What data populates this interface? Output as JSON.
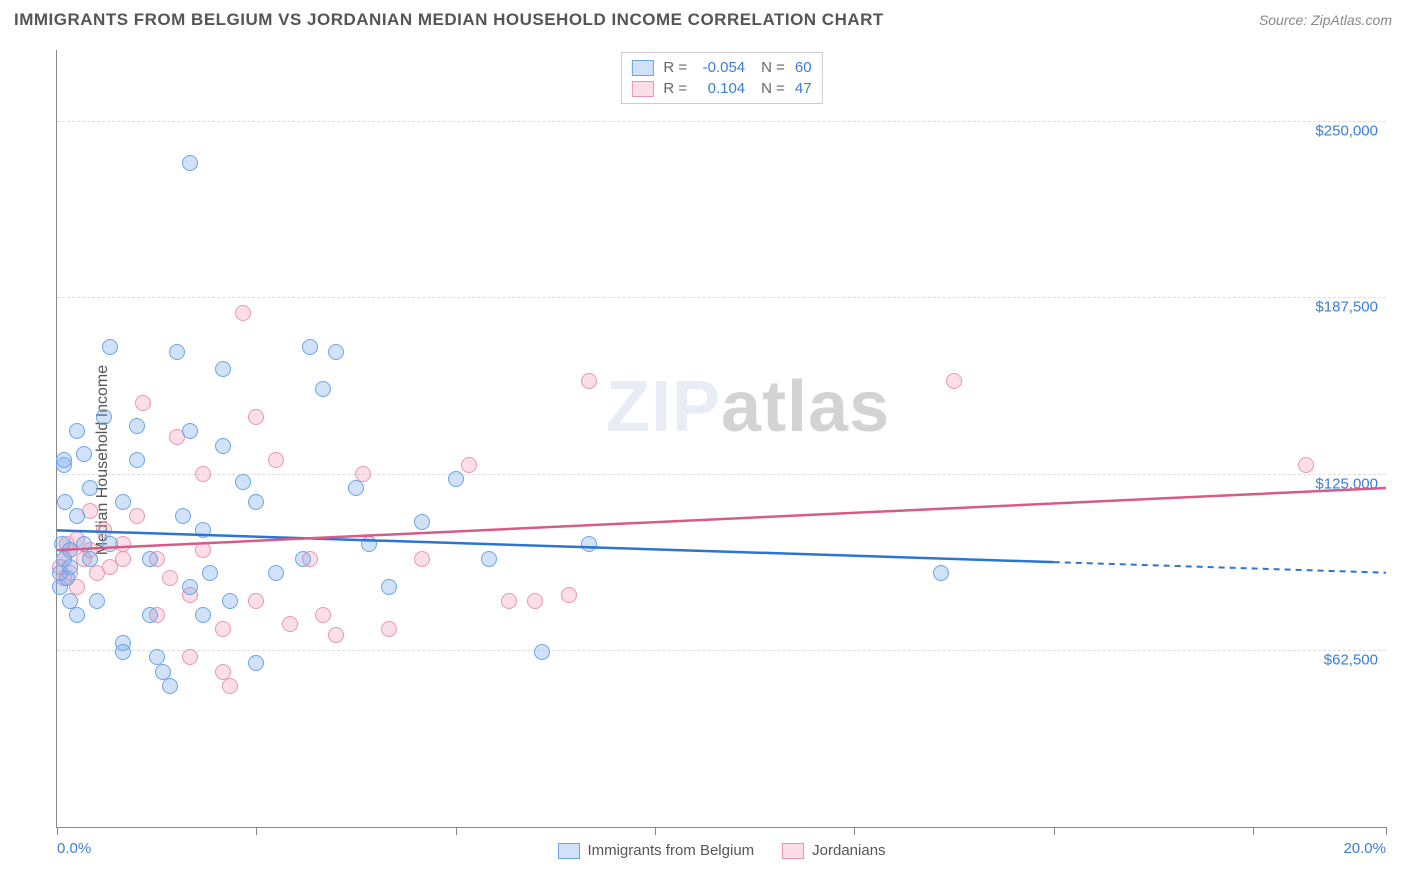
{
  "header": {
    "title": "IMMIGRANTS FROM BELGIUM VS JORDANIAN MEDIAN HOUSEHOLD INCOME CORRELATION CHART",
    "source_prefix": "Source: ",
    "source_name": "ZipAtlas.com"
  },
  "chart": {
    "type": "scatter",
    "ylabel": "Median Household Income",
    "xlim": [
      0.0,
      20.0
    ],
    "ylim": [
      0,
      275000
    ],
    "x_ticks": [
      0.0,
      3.0,
      6.0,
      9.0,
      12.0,
      15.0,
      18.0,
      20.0
    ],
    "x_tick_labels": {
      "0": "0.0%",
      "20": "20.0%"
    },
    "y_gridlines": [
      62500,
      125000,
      187500,
      250000
    ],
    "y_labels": [
      "$62,500",
      "$125,000",
      "$187,500",
      "$250,000"
    ],
    "background_color": "#ffffff",
    "grid_color": "#dddddd",
    "axis_color": "#888888",
    "series": [
      {
        "name": "Immigrants from Belgium",
        "color_fill": "rgba(120,170,235,0.35)",
        "color_stroke": "#6aa6e6",
        "line_color": "#2b74d4",
        "marker_radius": 8,
        "r": "-0.054",
        "n": "60",
        "trend": {
          "y_at_xmin": 105000,
          "y_at_xmax": 90000,
          "x_solid_end": 15.0
        },
        "points": [
          [
            0.05,
            90000
          ],
          [
            0.05,
            85000
          ],
          [
            0.08,
            100000
          ],
          [
            0.1,
            95000
          ],
          [
            0.1,
            128000
          ],
          [
            0.1,
            130000
          ],
          [
            0.12,
            115000
          ],
          [
            0.15,
            88000
          ],
          [
            0.2,
            80000
          ],
          [
            0.2,
            92000
          ],
          [
            0.2,
            98000
          ],
          [
            0.3,
            140000
          ],
          [
            0.3,
            75000
          ],
          [
            0.3,
            110000
          ],
          [
            0.4,
            132000
          ],
          [
            0.4,
            100000
          ],
          [
            0.5,
            95000
          ],
          [
            0.5,
            120000
          ],
          [
            0.6,
            80000
          ],
          [
            0.7,
            145000
          ],
          [
            0.8,
            170000
          ],
          [
            0.8,
            100000
          ],
          [
            1.0,
            65000
          ],
          [
            1.0,
            62000
          ],
          [
            1.0,
            115000
          ],
          [
            1.2,
            142000
          ],
          [
            1.2,
            130000
          ],
          [
            1.4,
            95000
          ],
          [
            1.4,
            75000
          ],
          [
            1.5,
            60000
          ],
          [
            1.6,
            55000
          ],
          [
            1.7,
            50000
          ],
          [
            1.8,
            168000
          ],
          [
            1.9,
            110000
          ],
          [
            2.0,
            235000
          ],
          [
            2.0,
            85000
          ],
          [
            2.0,
            140000
          ],
          [
            2.2,
            75000
          ],
          [
            2.2,
            105000
          ],
          [
            2.3,
            90000
          ],
          [
            2.5,
            162000
          ],
          [
            2.5,
            135000
          ],
          [
            2.6,
            80000
          ],
          [
            2.8,
            122000
          ],
          [
            3.0,
            58000
          ],
          [
            3.0,
            115000
          ],
          [
            3.3,
            90000
          ],
          [
            3.7,
            95000
          ],
          [
            3.8,
            170000
          ],
          [
            4.0,
            155000
          ],
          [
            4.2,
            168000
          ],
          [
            4.5,
            120000
          ],
          [
            4.7,
            100000
          ],
          [
            5.0,
            85000
          ],
          [
            5.5,
            108000
          ],
          [
            6.0,
            123000
          ],
          [
            6.5,
            95000
          ],
          [
            7.3,
            62000
          ],
          [
            8.0,
            100000
          ],
          [
            13.3,
            90000
          ]
        ]
      },
      {
        "name": "Jordanians",
        "color_fill": "rgba(245,160,190,0.35)",
        "color_stroke": "#e996b3",
        "line_color": "#d85a87",
        "marker_radius": 8,
        "r": "0.104",
        "n": "47",
        "trend": {
          "y_at_xmin": 98000,
          "y_at_xmax": 120000,
          "x_solid_end": 20.0
        },
        "points": [
          [
            0.05,
            92000
          ],
          [
            0.1,
            88000
          ],
          [
            0.1,
            95000
          ],
          [
            0.15,
            100000
          ],
          [
            0.2,
            98000
          ],
          [
            0.2,
            90000
          ],
          [
            0.3,
            85000
          ],
          [
            0.3,
            102000
          ],
          [
            0.4,
            95000
          ],
          [
            0.5,
            112000
          ],
          [
            0.5,
            98000
          ],
          [
            0.6,
            90000
          ],
          [
            0.7,
            105000
          ],
          [
            0.8,
            92000
          ],
          [
            1.0,
            100000
          ],
          [
            1.0,
            95000
          ],
          [
            1.2,
            110000
          ],
          [
            1.3,
            150000
          ],
          [
            1.5,
            75000
          ],
          [
            1.5,
            95000
          ],
          [
            1.7,
            88000
          ],
          [
            1.8,
            138000
          ],
          [
            2.0,
            82000
          ],
          [
            2.0,
            60000
          ],
          [
            2.2,
            125000
          ],
          [
            2.2,
            98000
          ],
          [
            2.5,
            55000
          ],
          [
            2.5,
            70000
          ],
          [
            2.6,
            50000
          ],
          [
            2.8,
            182000
          ],
          [
            3.0,
            145000
          ],
          [
            3.0,
            80000
          ],
          [
            3.3,
            130000
          ],
          [
            3.5,
            72000
          ],
          [
            3.8,
            95000
          ],
          [
            4.0,
            75000
          ],
          [
            4.2,
            68000
          ],
          [
            4.6,
            125000
          ],
          [
            5.0,
            70000
          ],
          [
            5.5,
            95000
          ],
          [
            6.2,
            128000
          ],
          [
            6.8,
            80000
          ],
          [
            7.2,
            80000
          ],
          [
            7.7,
            82000
          ],
          [
            8.0,
            158000
          ],
          [
            13.5,
            158000
          ],
          [
            18.8,
            128000
          ]
        ]
      }
    ],
    "watermark": {
      "part1": "ZIP",
      "part2": "atlas"
    },
    "legend_bottom": [
      "Immigrants from Belgium",
      "Jordanians"
    ]
  }
}
